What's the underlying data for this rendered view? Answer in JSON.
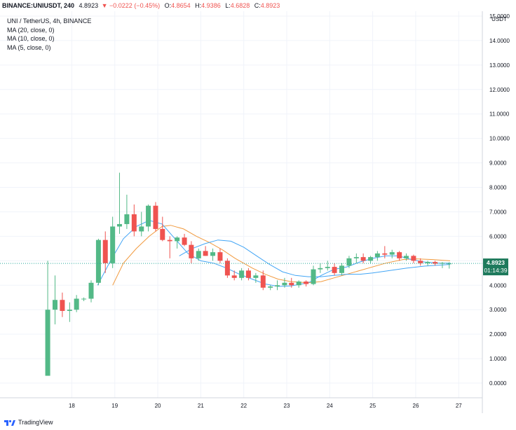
{
  "header": {
    "symbol": "BINANCE:UNIUSDT, 240",
    "last": "4.8923",
    "change": "−0.0222 (−0.45%)",
    "open_label": "O:",
    "open": "4.8654",
    "high_label": "H:",
    "high": "4.9386",
    "low_label": "L:",
    "low": "4.6828",
    "close_label": "C:",
    "close": "4.8923"
  },
  "legend": {
    "title": "UNI / TetherUS, 4h, BINANCE",
    "ma1": "MA (20, close, 0)",
    "ma2": "MA (10, close, 0)",
    "ma3": "MA (5, close, 0)"
  },
  "currency": "USDT",
  "price_tag": "4.8923",
  "countdown": "01:14:39",
  "brand": "TradingView",
  "colors": {
    "up": "#26a69a",
    "up_fill": "#53b987",
    "down": "#ef5350",
    "ma_orange": "#f19a3e",
    "ma_blue": "#42a5f5",
    "grid": "#f0f3fa",
    "price_label": "#1e7a5c"
  },
  "chart_data": {
    "type": "candlestick",
    "title": "UNI / TetherUS, 4h, BINANCE",
    "y_axis": {
      "labels": [
        "15.0000",
        "14.0000",
        "13.0000",
        "12.0000",
        "11.0000",
        "10.0000",
        "9.0000",
        "8.0000",
        "7.0000",
        "6.0000",
        "5.0000",
        "4.0000",
        "3.0000",
        "2.0000",
        "1.0000",
        "0.0000"
      ],
      "values": [
        15,
        14,
        13,
        12,
        11,
        10,
        9,
        8,
        7,
        6,
        5,
        4,
        3,
        2,
        1,
        0
      ],
      "ylim": [
        -0.6,
        15.2
      ]
    },
    "x_axis": {
      "labels": [
        "18",
        "19",
        "20",
        "21",
        "22",
        "23",
        "24",
        "25",
        "26",
        "27"
      ],
      "positions": [
        18,
        19,
        20,
        21,
        22,
        23,
        24,
        25,
        26,
        27
      ],
      "xlim": [
        16.33,
        27.55
      ]
    },
    "candles": [
      {
        "t": 17.44,
        "o": 0.3,
        "h": 5.0,
        "l": 0.3,
        "c": 3.0
      },
      {
        "t": 17.61,
        "o": 3.0,
        "h": 4.4,
        "l": 2.4,
        "c": 3.4
      },
      {
        "t": 17.78,
        "o": 3.4,
        "h": 3.7,
        "l": 2.7,
        "c": 2.95
      },
      {
        "t": 17.95,
        "o": 2.95,
        "h": 3.3,
        "l": 2.5,
        "c": 3.0
      },
      {
        "t": 18.11,
        "o": 3.0,
        "h": 3.6,
        "l": 2.9,
        "c": 3.45
      },
      {
        "t": 18.28,
        "o": 3.45,
        "h": 3.5,
        "l": 3.35,
        "c": 3.45
      },
      {
        "t": 18.45,
        "o": 3.45,
        "h": 4.2,
        "l": 3.3,
        "c": 4.1
      },
      {
        "t": 18.62,
        "o": 4.1,
        "h": 5.9,
        "l": 4.0,
        "c": 5.85
      },
      {
        "t": 18.78,
        "o": 5.85,
        "h": 6.2,
        "l": 4.5,
        "c": 4.9
      },
      {
        "t": 18.95,
        "o": 4.9,
        "h": 6.8,
        "l": 4.7,
        "c": 6.4
      },
      {
        "t": 19.11,
        "o": 6.4,
        "h": 8.6,
        "l": 6.1,
        "c": 6.5
      },
      {
        "t": 19.28,
        "o": 6.5,
        "h": 7.7,
        "l": 6.3,
        "c": 6.9
      },
      {
        "t": 19.45,
        "o": 6.9,
        "h": 7.3,
        "l": 6.0,
        "c": 6.2
      },
      {
        "t": 19.62,
        "o": 6.2,
        "h": 7.0,
        "l": 6.0,
        "c": 6.4
      },
      {
        "t": 19.78,
        "o": 6.4,
        "h": 7.3,
        "l": 6.2,
        "c": 7.25
      },
      {
        "t": 19.95,
        "o": 7.25,
        "h": 7.4,
        "l": 6.2,
        "c": 6.3
      },
      {
        "t": 20.11,
        "o": 6.3,
        "h": 6.8,
        "l": 5.8,
        "c": 5.85
      },
      {
        "t": 20.28,
        "o": 5.85,
        "h": 6.0,
        "l": 5.1,
        "c": 5.8
      },
      {
        "t": 20.45,
        "o": 5.8,
        "h": 6.0,
        "l": 5.5,
        "c": 5.95
      },
      {
        "t": 20.62,
        "o": 5.95,
        "h": 6.1,
        "l": 5.6,
        "c": 5.65
      },
      {
        "t": 20.78,
        "o": 5.65,
        "h": 5.8,
        "l": 4.9,
        "c": 5.1
      },
      {
        "t": 20.95,
        "o": 5.1,
        "h": 5.5,
        "l": 5.0,
        "c": 5.4
      },
      {
        "t": 21.11,
        "o": 5.4,
        "h": 5.6,
        "l": 5.2,
        "c": 5.2
      },
      {
        "t": 21.28,
        "o": 5.2,
        "h": 5.5,
        "l": 5.0,
        "c": 5.35
      },
      {
        "t": 21.45,
        "o": 5.35,
        "h": 5.5,
        "l": 4.9,
        "c": 5.0
      },
      {
        "t": 21.62,
        "o": 5.0,
        "h": 5.1,
        "l": 4.3,
        "c": 4.4
      },
      {
        "t": 21.78,
        "o": 4.4,
        "h": 4.6,
        "l": 4.2,
        "c": 4.3
      },
      {
        "t": 21.95,
        "o": 4.3,
        "h": 4.7,
        "l": 4.2,
        "c": 4.6
      },
      {
        "t": 22.11,
        "o": 4.6,
        "h": 4.7,
        "l": 4.2,
        "c": 4.3
      },
      {
        "t": 22.28,
        "o": 4.3,
        "h": 4.5,
        "l": 4.1,
        "c": 4.4
      },
      {
        "t": 22.45,
        "o": 4.4,
        "h": 4.6,
        "l": 3.8,
        "c": 3.9
      },
      {
        "t": 22.62,
        "o": 3.9,
        "h": 4.0,
        "l": 3.8,
        "c": 3.95
      },
      {
        "t": 22.78,
        "o": 3.95,
        "h": 4.2,
        "l": 3.8,
        "c": 4.0
      },
      {
        "t": 22.95,
        "o": 4.0,
        "h": 4.3,
        "l": 3.9,
        "c": 4.1
      },
      {
        "t": 23.11,
        "o": 4.1,
        "h": 4.3,
        "l": 3.9,
        "c": 4.0
      },
      {
        "t": 23.28,
        "o": 4.0,
        "h": 4.2,
        "l": 3.9,
        "c": 4.15
      },
      {
        "t": 23.45,
        "o": 4.15,
        "h": 4.2,
        "l": 3.95,
        "c": 4.05
      },
      {
        "t": 23.62,
        "o": 4.05,
        "h": 4.8,
        "l": 4.0,
        "c": 4.65
      },
      {
        "t": 23.78,
        "o": 4.65,
        "h": 4.9,
        "l": 4.5,
        "c": 4.7
      },
      {
        "t": 23.95,
        "o": 4.7,
        "h": 5.0,
        "l": 4.6,
        "c": 4.75
      },
      {
        "t": 24.11,
        "o": 4.75,
        "h": 4.9,
        "l": 4.4,
        "c": 4.5
      },
      {
        "t": 24.28,
        "o": 4.5,
        "h": 4.9,
        "l": 4.4,
        "c": 4.8
      },
      {
        "t": 24.45,
        "o": 4.8,
        "h": 5.2,
        "l": 4.7,
        "c": 5.1
      },
      {
        "t": 24.62,
        "o": 5.1,
        "h": 5.3,
        "l": 4.9,
        "c": 5.15
      },
      {
        "t": 24.78,
        "o": 5.15,
        "h": 5.3,
        "l": 4.9,
        "c": 5.0
      },
      {
        "t": 24.95,
        "o": 5.0,
        "h": 5.2,
        "l": 4.9,
        "c": 5.15
      },
      {
        "t": 25.11,
        "o": 5.15,
        "h": 5.4,
        "l": 5.0,
        "c": 5.3
      },
      {
        "t": 25.28,
        "o": 5.3,
        "h": 5.6,
        "l": 5.1,
        "c": 5.25
      },
      {
        "t": 25.45,
        "o": 5.25,
        "h": 5.45,
        "l": 5.1,
        "c": 5.35
      },
      {
        "t": 25.62,
        "o": 5.35,
        "h": 5.4,
        "l": 5.0,
        "c": 5.1
      },
      {
        "t": 25.78,
        "o": 5.1,
        "h": 5.3,
        "l": 5.0,
        "c": 5.2
      },
      {
        "t": 25.95,
        "o": 5.2,
        "h": 5.25,
        "l": 4.9,
        "c": 5.0
      },
      {
        "t": 26.11,
        "o": 5.0,
        "h": 5.1,
        "l": 4.8,
        "c": 4.9
      },
      {
        "t": 26.28,
        "o": 4.9,
        "h": 5.0,
        "l": 4.8,
        "c": 4.95
      },
      {
        "t": 26.45,
        "o": 4.95,
        "h": 5.0,
        "l": 4.8,
        "c": 4.88
      },
      {
        "t": 26.62,
        "o": 4.88,
        "h": 4.95,
        "l": 4.7,
        "c": 4.91
      },
      {
        "t": 26.78,
        "o": 4.87,
        "h": 4.94,
        "l": 4.68,
        "c": 4.89
      }
    ],
    "ma_series": [
      {
        "label": "MA (20, close, 0)",
        "color": "#f19a3e",
        "points": [
          [
            18.95,
            4.0
          ],
          [
            19.2,
            4.9
          ],
          [
            19.5,
            5.5
          ],
          [
            19.8,
            6.0
          ],
          [
            20.1,
            6.4
          ],
          [
            20.3,
            6.45
          ],
          [
            20.6,
            6.3
          ],
          [
            20.9,
            6.0
          ],
          [
            21.2,
            5.75
          ],
          [
            21.5,
            5.45
          ],
          [
            21.8,
            5.1
          ],
          [
            22.2,
            4.7
          ],
          [
            22.5,
            4.45
          ],
          [
            22.8,
            4.25
          ],
          [
            23.1,
            4.15
          ],
          [
            23.5,
            4.1
          ],
          [
            23.8,
            4.15
          ],
          [
            24.1,
            4.3
          ],
          [
            24.5,
            4.5
          ],
          [
            24.9,
            4.7
          ],
          [
            25.3,
            4.9
          ],
          [
            25.7,
            5.05
          ],
          [
            26.0,
            5.08
          ],
          [
            26.4,
            5.05
          ],
          [
            26.8,
            5.0
          ]
        ]
      },
      {
        "label": "MA (10, close, 0)",
        "color": "#42a5f5",
        "points": [
          [
            18.6,
            4.0
          ],
          [
            18.9,
            5.0
          ],
          [
            19.2,
            5.9
          ],
          [
            19.5,
            6.4
          ],
          [
            19.8,
            6.65
          ],
          [
            20.1,
            6.5
          ],
          [
            20.4,
            5.9
          ],
          [
            20.7,
            5.3
          ],
          [
            21.0,
            5.0
          ],
          [
            21.3,
            4.9
          ],
          [
            21.6,
            4.7
          ],
          [
            21.9,
            4.45
          ],
          [
            22.2,
            4.25
          ],
          [
            22.5,
            4.05
          ],
          [
            22.8,
            3.95
          ],
          [
            23.1,
            3.97
          ],
          [
            23.5,
            4.1
          ],
          [
            23.8,
            4.4
          ],
          [
            24.1,
            4.65
          ],
          [
            24.4,
            4.75
          ],
          [
            24.7,
            4.95
          ],
          [
            25.0,
            5.1
          ],
          [
            25.3,
            5.2
          ],
          [
            25.6,
            5.2
          ],
          [
            25.9,
            5.05
          ],
          [
            26.2,
            4.95
          ],
          [
            26.5,
            4.9
          ],
          [
            26.8,
            4.9
          ]
        ]
      },
      {
        "label": "MA (5, close, 0)",
        "color": "#42a5f5",
        "points": [
          [
            20.5,
            5.2
          ],
          [
            20.8,
            5.5
          ],
          [
            21.1,
            5.7
          ],
          [
            21.4,
            5.85
          ],
          [
            21.7,
            5.8
          ],
          [
            22.0,
            5.55
          ],
          [
            22.3,
            5.2
          ],
          [
            22.6,
            4.85
          ],
          [
            22.9,
            4.55
          ],
          [
            23.2,
            4.4
          ],
          [
            23.5,
            4.35
          ],
          [
            23.8,
            4.35
          ],
          [
            24.1,
            4.4
          ],
          [
            24.4,
            4.45
          ],
          [
            24.7,
            4.45
          ],
          [
            25.0,
            4.5
          ],
          [
            25.4,
            4.6
          ],
          [
            25.8,
            4.7
          ],
          [
            26.2,
            4.78
          ],
          [
            26.8,
            4.85
          ]
        ]
      }
    ],
    "last_price": 4.8923
  }
}
